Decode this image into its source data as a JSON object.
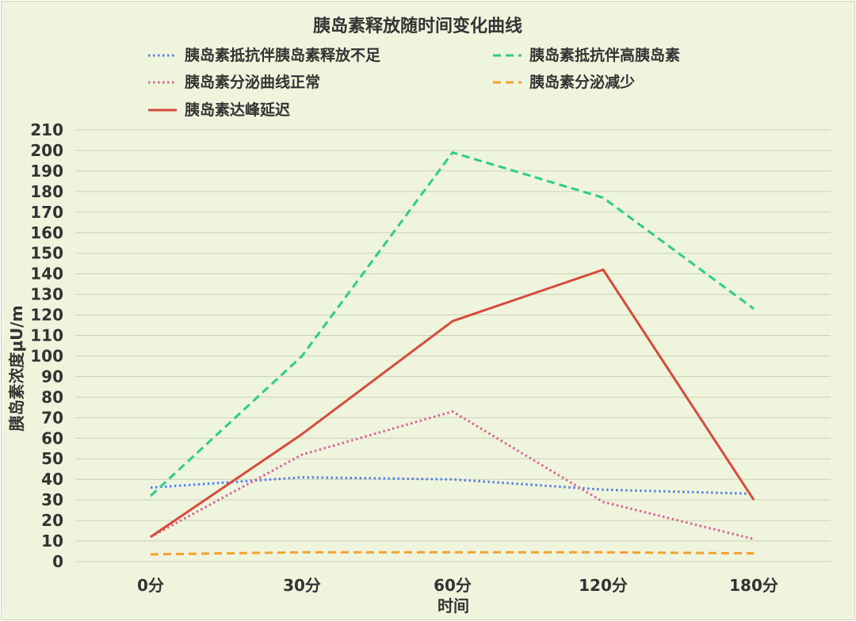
{
  "chart_data": {
    "type": "line",
    "title": "胰岛素释放随时间变化曲线",
    "xlabel": "时间",
    "ylabel": "胰岛素浓度μU/m",
    "categories": [
      "0分",
      "30分",
      "60分",
      "120分",
      "180分"
    ],
    "ylim": [
      0,
      210
    ],
    "ytick_step": 10,
    "grid": true,
    "legend_position": "top",
    "series": [
      {
        "name": "胰岛素抵抗伴胰岛素释放不足",
        "values": [
          36,
          41,
          40,
          35,
          33
        ],
        "color": "#4f7fff",
        "style": "dotted"
      },
      {
        "name": "胰岛素抵抗伴高胰岛素",
        "values": [
          32,
          100,
          199,
          177,
          123
        ],
        "color": "#2ecc8a",
        "style": "dashed"
      },
      {
        "name": "胰岛素分泌曲线正常",
        "values": [
          12,
          52,
          73,
          29,
          11
        ],
        "color": "#e0609a",
        "style": "dotted"
      },
      {
        "name": "胰岛素分泌减少",
        "values": [
          3.5,
          4.5,
          4.5,
          4.5,
          4
        ],
        "color": "#f5a030",
        "style": "dashed"
      },
      {
        "name": "胰岛素达峰延迟",
        "values": [
          12,
          62,
          117,
          142,
          30
        ],
        "color": "#d84a3a",
        "style": "solid"
      }
    ]
  }
}
